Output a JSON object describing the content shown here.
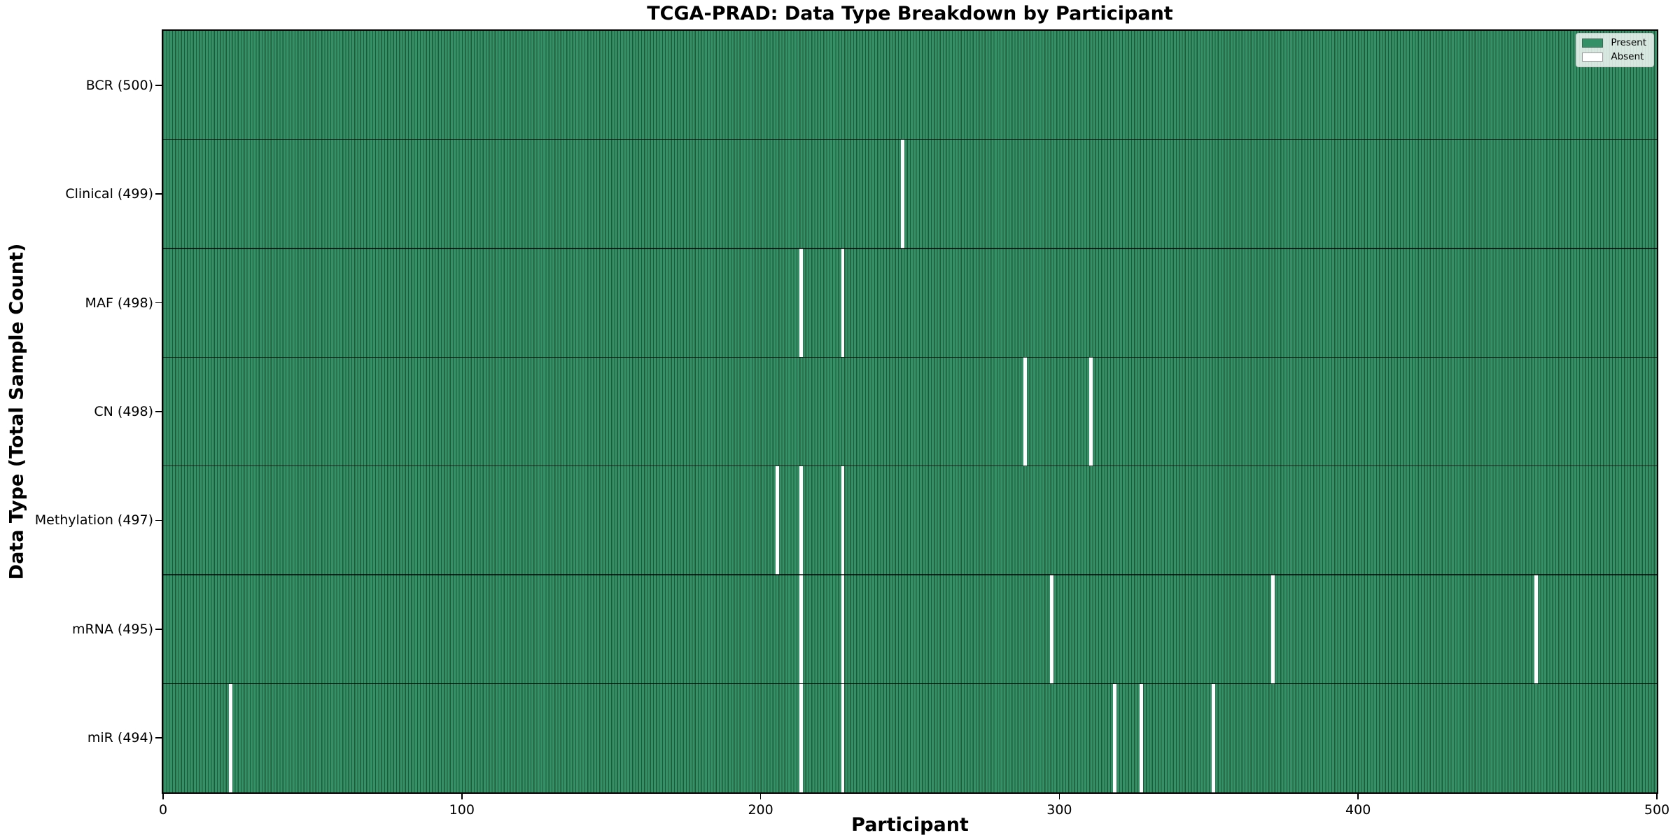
{
  "title": "TCGA-PRAD: Data Type Breakdown by Participant",
  "axes": {
    "x_label": "Participant",
    "y_label": "Data Type (Total Sample Count)",
    "x_ticks": [
      0,
      100,
      200,
      300,
      400,
      500
    ],
    "x_range": [
      0,
      500
    ]
  },
  "legend": {
    "items": [
      {
        "label": "Present",
        "color": "#349066"
      },
      {
        "label": "Absent",
        "color": "#ffffff"
      }
    ]
  },
  "chart_data": {
    "type": "heatmap",
    "title": "TCGA-PRAD: Data Type Breakdown by Participant",
    "xlabel": "Participant",
    "ylabel": "Data Type (Total Sample Count)",
    "x_range": [
      0,
      500
    ],
    "n_participants": 500,
    "legend_position": "upper right",
    "legend": [
      "Present",
      "Absent"
    ],
    "rows": [
      {
        "label": "BCR (500)",
        "data_type": "BCR",
        "total": 500,
        "absent_participants": []
      },
      {
        "label": "Clinical (499)",
        "data_type": "Clinical",
        "total": 499,
        "absent_participants": [
          247
        ]
      },
      {
        "label": "MAF (498)",
        "data_type": "MAF",
        "total": 498,
        "absent_participants": [
          213,
          227
        ]
      },
      {
        "label": "CN (498)",
        "data_type": "CN",
        "total": 498,
        "absent_participants": [
          288,
          310
        ]
      },
      {
        "label": "Methylation (497)",
        "data_type": "Methylation",
        "total": 497,
        "absent_participants": [
          205,
          213,
          227
        ]
      },
      {
        "label": "mRNA (495)",
        "data_type": "mRNA",
        "total": 495,
        "absent_participants": [
          213,
          227,
          297,
          371,
          459
        ]
      },
      {
        "label": "miR (494)",
        "data_type": "miR",
        "total": 494,
        "absent_participants": [
          22,
          213,
          227,
          318,
          327,
          351
        ]
      }
    ],
    "colors": {
      "present": "#349066",
      "cell_edge": "#1f5838",
      "absent": "#ffffff"
    }
  }
}
